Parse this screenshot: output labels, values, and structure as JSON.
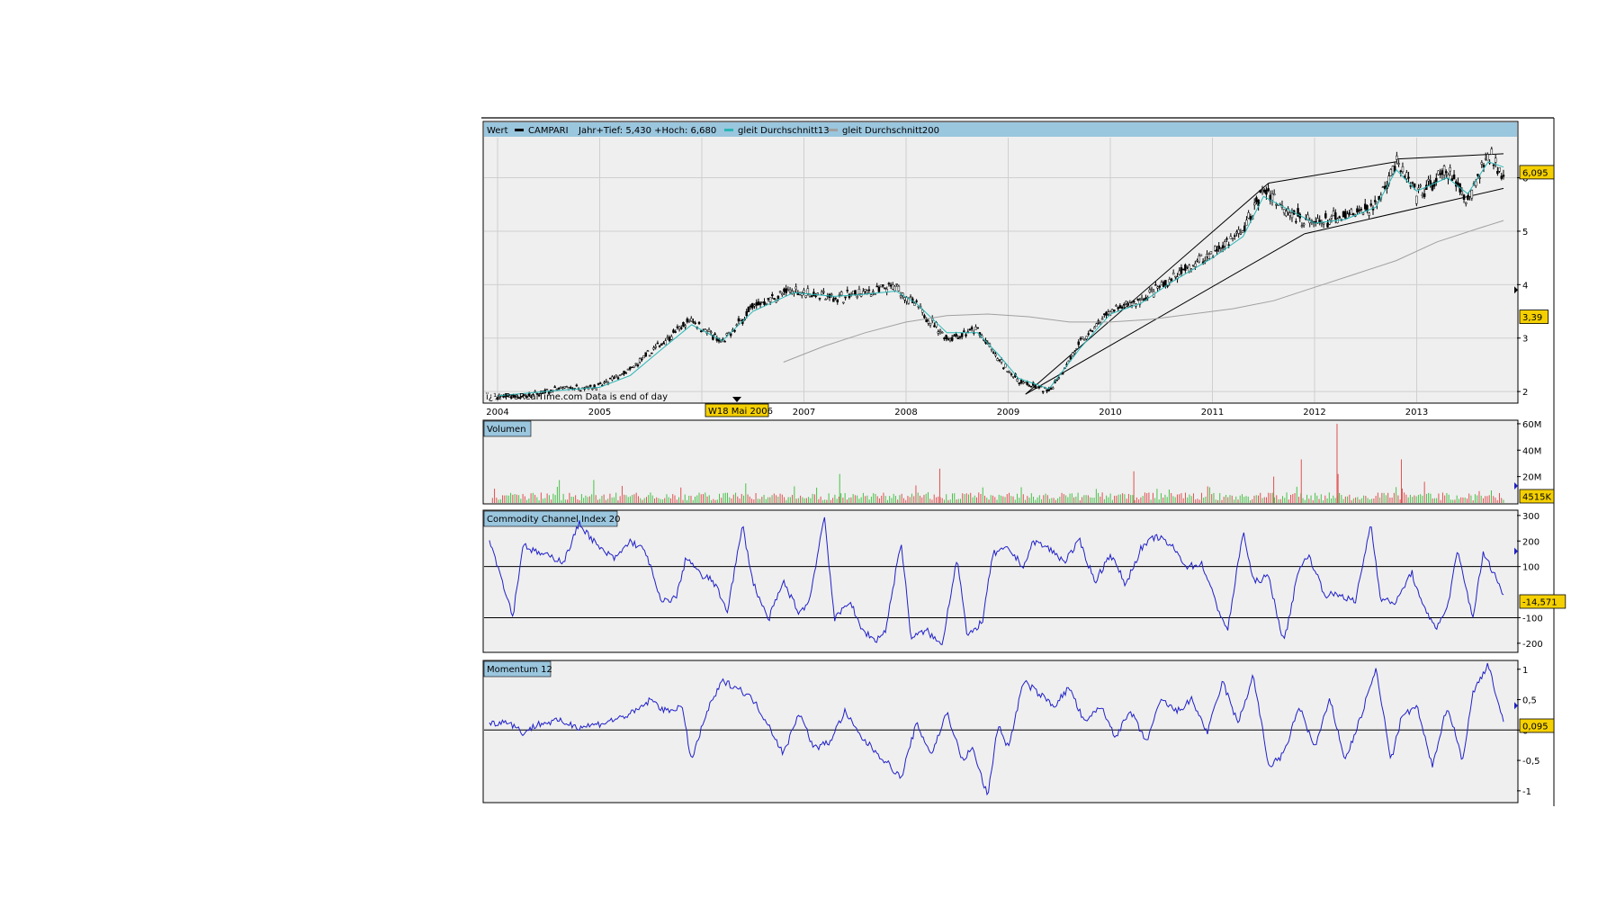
{
  "header": {
    "wert": "Wert",
    "series_label": "CAMPARI",
    "range_text": "Jahr+Tief: 5,430 +Hoch: 6,680",
    "ma13_label": "gleit Durchschnitt13",
    "ma200_label": "gleit Durchschnitt200"
  },
  "watermark": "ï¿½ ProRealTime.com Data is end of day",
  "cursor_label": "W18 Mai 2006",
  "colors": {
    "price": "#000000",
    "ma13": "#2ab6b6",
    "ma200": "#a0a0a0",
    "volume_up": "#48c048",
    "volume_down": "#e05050",
    "oscillator": "#2020c8",
    "badge": "#f5d000",
    "header_bg": "#9ac6de",
    "panel_bg": "#efefef"
  },
  "chart_data": [
    {
      "type": "line",
      "panel": "price",
      "x_ticks": [
        "2004",
        "2005",
        "2006",
        "2007",
        "2008",
        "2009",
        "2010",
        "2011",
        "2012",
        "2013"
      ],
      "y_ticks": [
        "2",
        "3",
        "4",
        "5",
        "6"
      ],
      "ylim": [
        1.8,
        6.75
      ],
      "last_value_label": "6,095",
      "secondary_label": "3,39",
      "series": [
        {
          "name": "CAMPARI",
          "x": [
            2004.0,
            2004.3,
            2004.6,
            2005.0,
            2005.3,
            2005.6,
            2005.9,
            2006.2,
            2006.5,
            2006.9,
            2007.3,
            2007.6,
            2007.9,
            2008.1,
            2008.4,
            2008.7,
            2008.9,
            2009.1,
            2009.4,
            2009.7,
            2010.0,
            2010.3,
            2010.6,
            2011.0,
            2011.3,
            2011.5,
            2011.8,
            2012.0,
            2012.3,
            2012.6,
            2012.8,
            2013.0,
            2013.3,
            2013.5,
            2013.7,
            2013.85
          ],
          "values": [
            1.9,
            1.92,
            2.05,
            2.1,
            2.4,
            2.9,
            3.35,
            2.9,
            3.6,
            3.9,
            3.75,
            3.85,
            3.95,
            3.6,
            3.0,
            3.15,
            2.6,
            2.2,
            2.0,
            2.9,
            3.5,
            3.7,
            4.1,
            4.6,
            5.0,
            5.8,
            5.3,
            5.15,
            5.25,
            5.5,
            6.3,
            5.65,
            6.1,
            5.6,
            6.45,
            6.1
          ]
        },
        {
          "name": "gleit Durchschnitt13",
          "x": [
            2004.0,
            2004.6,
            2005.0,
            2005.3,
            2005.6,
            2005.9,
            2006.2,
            2006.5,
            2006.9,
            2007.3,
            2007.6,
            2007.9,
            2008.1,
            2008.4,
            2008.7,
            2008.9,
            2009.1,
            2009.4,
            2009.7,
            2010.0,
            2010.3,
            2010.6,
            2011.0,
            2011.3,
            2011.5,
            2011.8,
            2012.0,
            2012.3,
            2012.6,
            2012.8,
            2013.0,
            2013.3,
            2013.5,
            2013.7,
            2013.85
          ],
          "values": [
            1.92,
            2.02,
            2.08,
            2.3,
            2.78,
            3.25,
            2.95,
            3.5,
            3.85,
            3.78,
            3.82,
            3.88,
            3.65,
            3.1,
            3.1,
            2.7,
            2.25,
            2.05,
            2.8,
            3.45,
            3.65,
            4.05,
            4.5,
            4.9,
            5.65,
            5.35,
            5.15,
            5.22,
            5.45,
            6.15,
            5.75,
            6.0,
            5.7,
            6.3,
            6.2
          ]
        },
        {
          "name": "gleit Durchschnitt200",
          "x": [
            2006.8,
            2007.2,
            2007.6,
            2008.0,
            2008.4,
            2008.8,
            2009.2,
            2009.6,
            2010.0,
            2010.4,
            2010.8,
            2011.2,
            2011.6,
            2012.0,
            2012.4,
            2012.8,
            2013.2,
            2013.6,
            2013.85
          ],
          "values": [
            2.55,
            2.85,
            3.1,
            3.3,
            3.42,
            3.45,
            3.4,
            3.3,
            3.3,
            3.35,
            3.45,
            3.55,
            3.7,
            3.95,
            4.2,
            4.45,
            4.8,
            5.05,
            5.2
          ]
        }
      ]
    },
    {
      "type": "bar",
      "panel": "volume",
      "title": "Volumen",
      "y_ticks": [
        "20M",
        "40M",
        "60M"
      ],
      "ylim": [
        0,
        62
      ],
      "last_value_label": "4515K",
      "spikes": [
        {
          "x": 2007.35,
          "value": 22,
          "up": true
        },
        {
          "x": 2008.33,
          "value": 26,
          "up": false
        },
        {
          "x": 2010.23,
          "value": 24,
          "up": false
        },
        {
          "x": 2011.6,
          "value": 20,
          "up": false
        },
        {
          "x": 2011.87,
          "value": 33,
          "up": false
        },
        {
          "x": 2012.22,
          "value": 60,
          "up": false
        },
        {
          "x": 2012.23,
          "value": 22,
          "up": false
        },
        {
          "x": 2012.85,
          "value": 33,
          "up": false
        }
      ]
    },
    {
      "type": "line",
      "panel": "cci",
      "title": "Commodity Channel Index 20",
      "y_ticks": [
        "300",
        "200",
        "100",
        "-100",
        "-200"
      ],
      "ylim": [
        -225,
        310
      ],
      "last_value_label": "-14,571",
      "series": [
        {
          "name": "Commodity Channel Index 20",
          "x": [
            2003.92,
            2004.05,
            2004.15,
            2004.25,
            2004.35,
            2004.5,
            2004.65,
            2004.8,
            2004.9,
            2005.0,
            2005.15,
            2005.3,
            2005.45,
            2005.6,
            2005.75,
            2005.85,
            2006.0,
            2006.1,
            2006.25,
            2006.4,
            2006.5,
            2006.65,
            2006.8,
            2006.95,
            2007.05,
            2007.2,
            2007.3,
            2007.45,
            2007.55,
            2007.7,
            2007.8,
            2007.95,
            2008.05,
            2008.2,
            2008.35,
            2008.5,
            2008.6,
            2008.75,
            2008.85,
            2009.0,
            2009.15,
            2009.25,
            2009.4,
            2009.55,
            2009.7,
            2009.85,
            2010.0,
            2010.15,
            2010.3,
            2010.45,
            2010.6,
            2010.75,
            2010.9,
            2011.05,
            2011.15,
            2011.3,
            2011.4,
            2011.55,
            2011.7,
            2011.85,
            2011.95,
            2012.1,
            2012.25,
            2012.4,
            2012.55,
            2012.65,
            2012.8,
            2012.95,
            2013.05,
            2013.2,
            2013.3,
            2013.4,
            2013.55,
            2013.65,
            2013.75,
            2013.85
          ],
          "values": [
            210,
            40,
            -95,
            190,
            160,
            140,
            120,
            270,
            220,
            170,
            130,
            200,
            160,
            -40,
            -20,
            140,
            60,
            50,
            -70,
            260,
            40,
            -110,
            40,
            -80,
            -40,
            300,
            -110,
            -30,
            -140,
            -190,
            -150,
            200,
            -180,
            -150,
            -210,
            140,
            -180,
            -110,
            150,
            170,
            100,
            200,
            170,
            120,
            200,
            40,
            150,
            30,
            170,
            220,
            180,
            100,
            110,
            -60,
            -150,
            240,
            40,
            60,
            -200,
            100,
            140,
            -10,
            -10,
            -40,
            270,
            -30,
            -40,
            80,
            -50,
            -140,
            -60,
            160,
            -100,
            150,
            80,
            -10
          ]
        }
      ]
    },
    {
      "type": "line",
      "panel": "momentum",
      "title": "Momentum 12",
      "y_ticks": [
        "1",
        "0,5",
        "0",
        "-0,5",
        "-1"
      ],
      "ylim": [
        -1.15,
        1.1
      ],
      "last_value_label": "0,095",
      "series": [
        {
          "name": "Momentum 12",
          "x": [
            2003.92,
            2004.1,
            2004.25,
            2004.4,
            2004.6,
            2004.8,
            2005.0,
            2005.2,
            2005.35,
            2005.5,
            2005.65,
            2005.8,
            2005.9,
            2006.05,
            2006.2,
            2006.35,
            2006.5,
            2006.65,
            2006.8,
            2006.95,
            2007.1,
            2007.25,
            2007.4,
            2007.55,
            2007.7,
            2007.85,
            2007.95,
            2008.1,
            2008.25,
            2008.4,
            2008.55,
            2008.65,
            2008.8,
            2008.9,
            2009.0,
            2009.15,
            2009.3,
            2009.45,
            2009.6,
            2009.75,
            2009.9,
            2010.05,
            2010.2,
            2010.35,
            2010.5,
            2010.65,
            2010.8,
            2010.95,
            2011.1,
            2011.25,
            2011.4,
            2011.55,
            2011.7,
            2011.85,
            2012.0,
            2012.15,
            2012.3,
            2012.45,
            2012.6,
            2012.75,
            2012.85,
            2013.0,
            2013.15,
            2013.3,
            2013.45,
            2013.55,
            2013.7,
            2013.85
          ],
          "values": [
            0.1,
            0.15,
            -0.05,
            0.1,
            0.15,
            0.05,
            0.1,
            0.2,
            0.3,
            0.5,
            0.3,
            0.4,
            -0.5,
            0.3,
            0.8,
            0.7,
            0.5,
            0.1,
            -0.4,
            0.3,
            -0.3,
            -0.2,
            0.3,
            -0.1,
            -0.35,
            -0.6,
            -0.8,
            0.1,
            -0.4,
            0.3,
            -0.5,
            -0.3,
            -1.1,
            0.1,
            -0.3,
            0.8,
            0.6,
            0.4,
            0.7,
            0.1,
            0.4,
            -0.1,
            0.3,
            -0.2,
            0.5,
            0.3,
            0.5,
            -0.05,
            0.8,
            0.1,
            0.9,
            -0.6,
            -0.4,
            0.4,
            -0.3,
            0.5,
            -0.5,
            0.2,
            1.0,
            -0.5,
            0.2,
            0.4,
            -0.6,
            0.4,
            -0.5,
            0.6,
            1.1,
            0.1
          ]
        }
      ]
    }
  ]
}
